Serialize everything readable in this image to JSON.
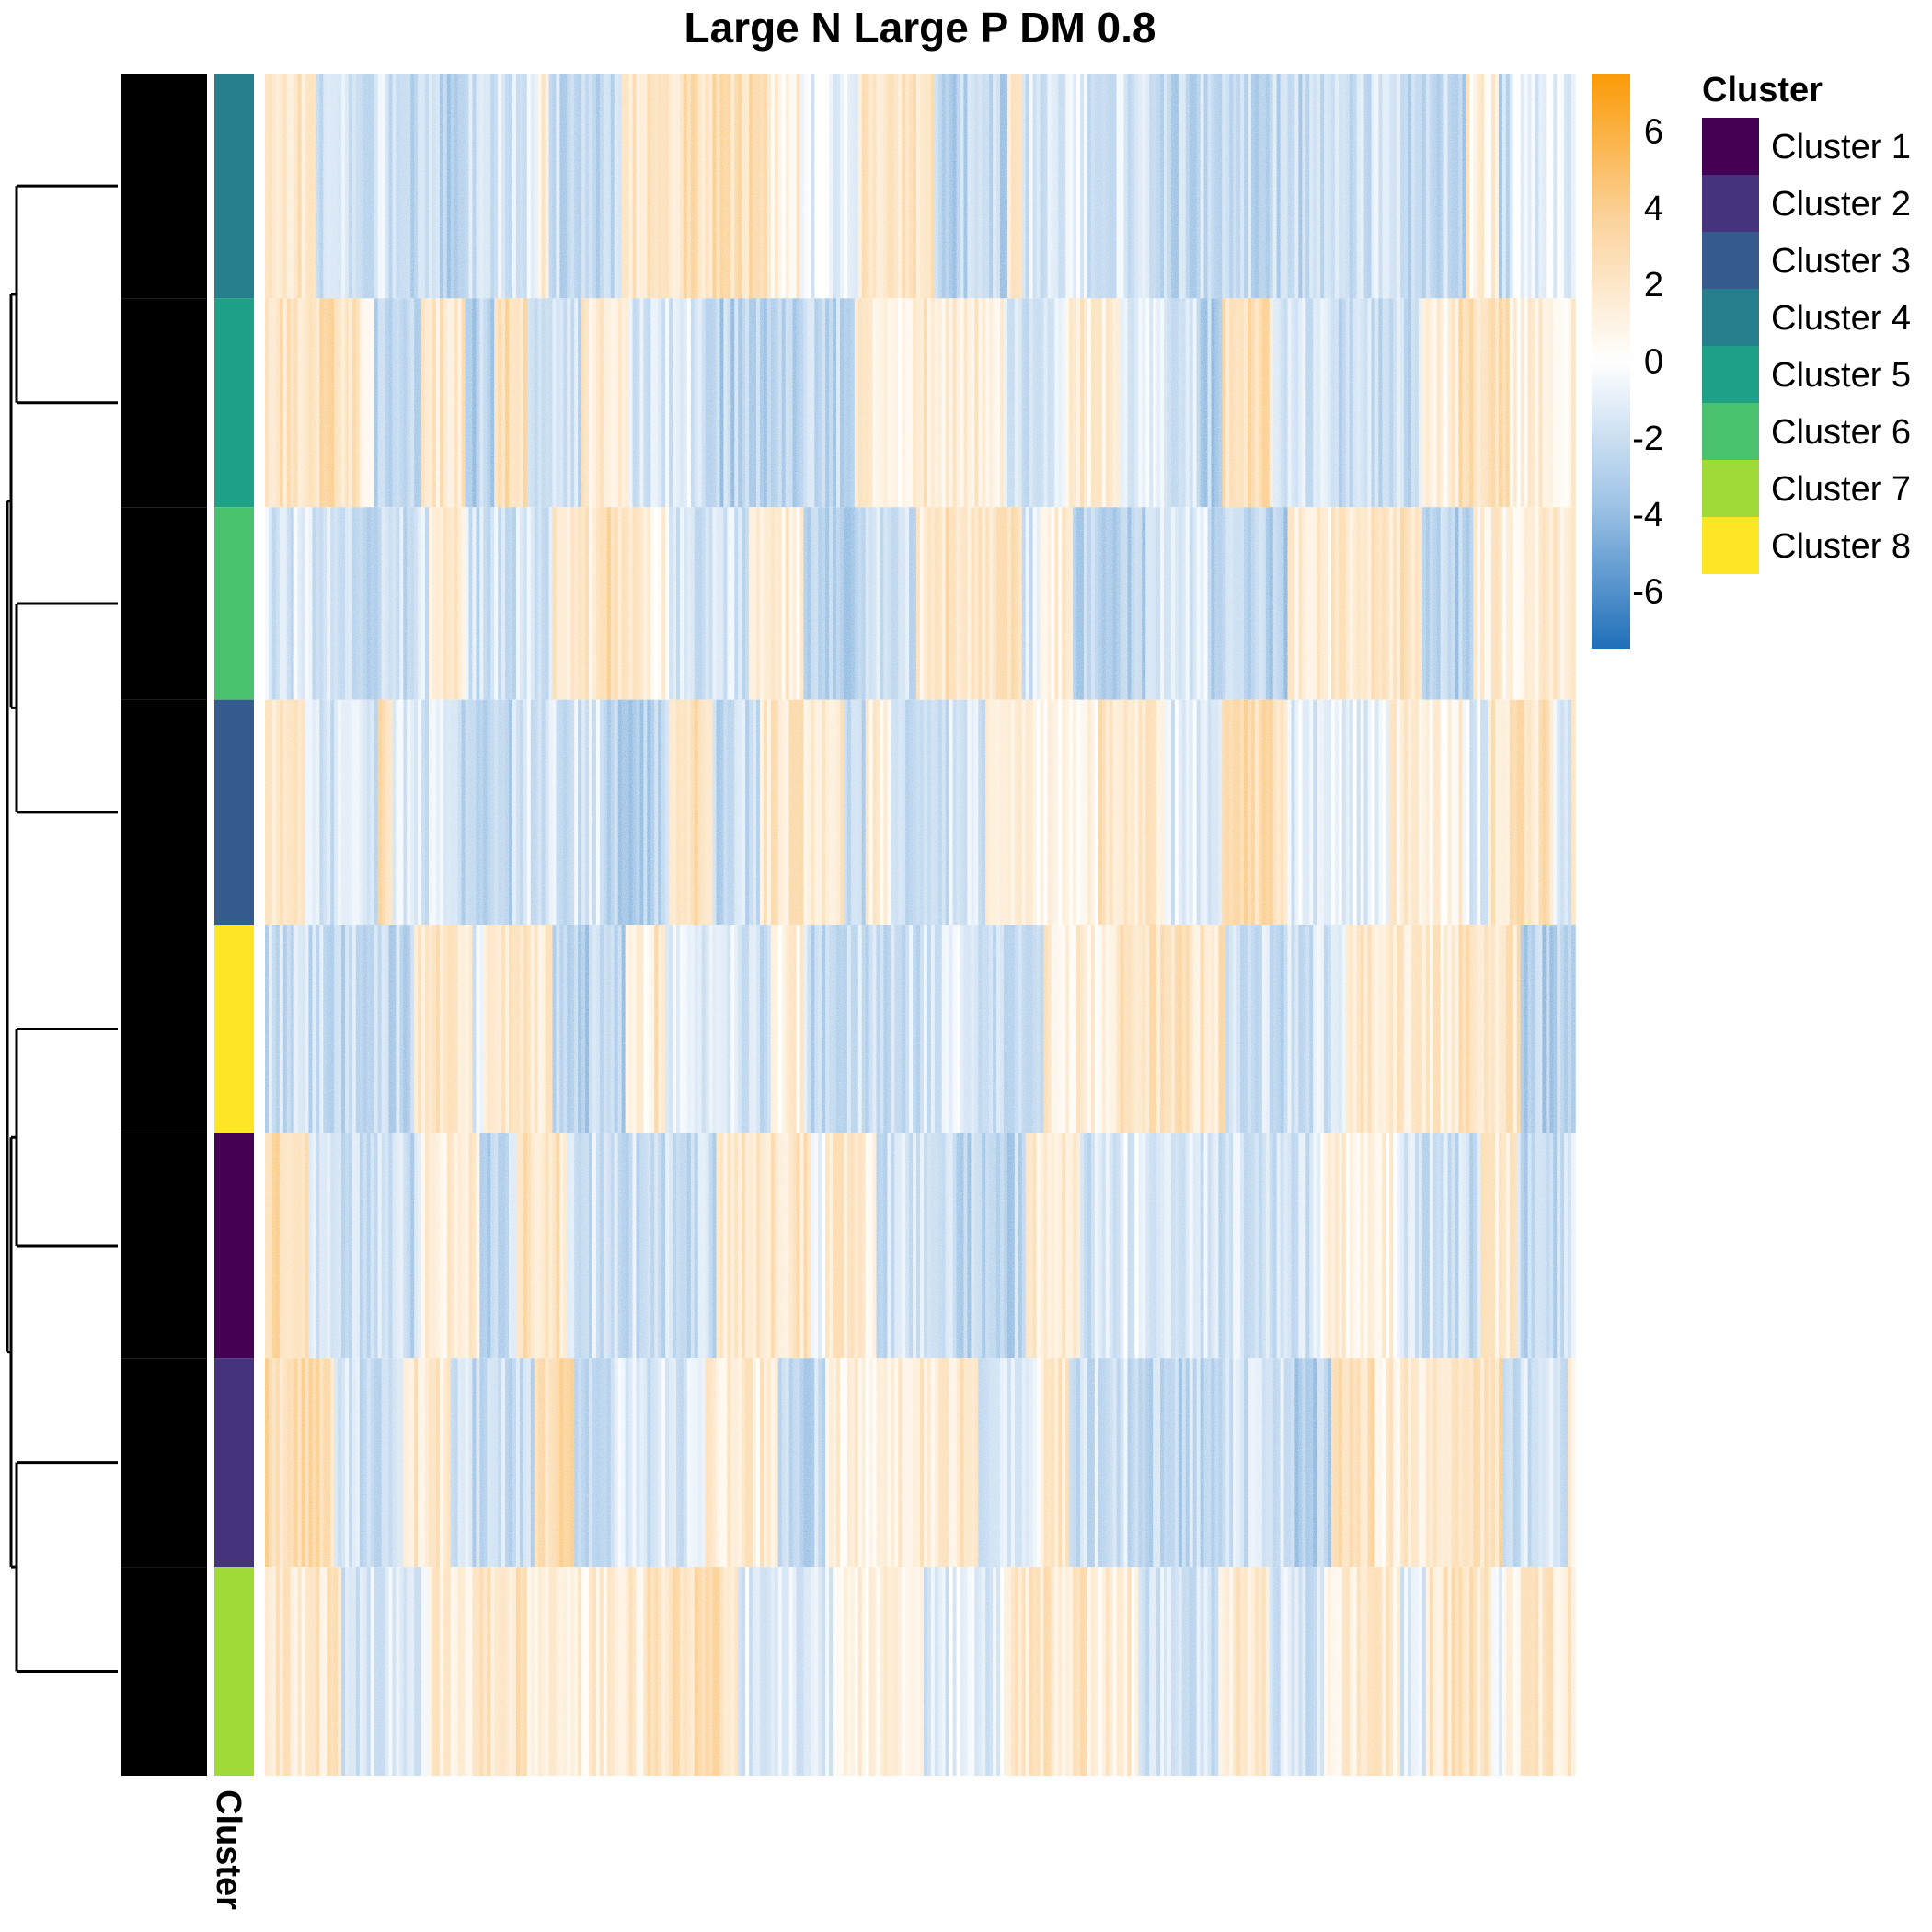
{
  "chart_data": {
    "type": "heatmap",
    "title": "Large N Large P DM 0.8",
    "color_scale": {
      "low": "#1f6fb9",
      "mid": "#ffffff",
      "high": "#fb9a06",
      "ticks": [
        6,
        4,
        2,
        0,
        -2,
        -4,
        -6
      ],
      "tick_labels": [
        "6",
        "4",
        "2",
        "0",
        "-2",
        "-4",
        "-6"
      ],
      "range": [
        -7.5,
        7.5
      ]
    },
    "annotation": {
      "name": "Cluster",
      "legend_title": "Cluster",
      "legend": [
        {
          "label": "Cluster 1",
          "color": "#440154"
        },
        {
          "label": "Cluster 2",
          "color": "#46337e"
        },
        {
          "label": "Cluster 3",
          "color": "#365c8d"
        },
        {
          "label": "Cluster 4",
          "color": "#277f8e"
        },
        {
          "label": "Cluster 5",
          "color": "#1fa187"
        },
        {
          "label": "Cluster 6",
          "color": "#4ac16d"
        },
        {
          "label": "Cluster 7",
          "color": "#a0da39"
        },
        {
          "label": "Cluster 8",
          "color": "#fde725"
        }
      ]
    },
    "row_blocks": [
      {
        "cluster": "Cluster 4",
        "rows": 14
      },
      {
        "cluster": "Cluster 5",
        "rows": 13
      },
      {
        "cluster": "Cluster 6",
        "rows": 12
      },
      {
        "cluster": "Cluster 3",
        "rows": 14
      },
      {
        "cluster": "Cluster 8",
        "rows": 13
      },
      {
        "cluster": "Cluster 1",
        "rows": 14
      },
      {
        "cluster": "Cluster 2",
        "rows": 13
      },
      {
        "cluster": "Cluster 7",
        "rows": 13
      }
    ],
    "row_dendrogram": true,
    "row_names_shown": true,
    "grid": false,
    "legend_position": "right"
  }
}
